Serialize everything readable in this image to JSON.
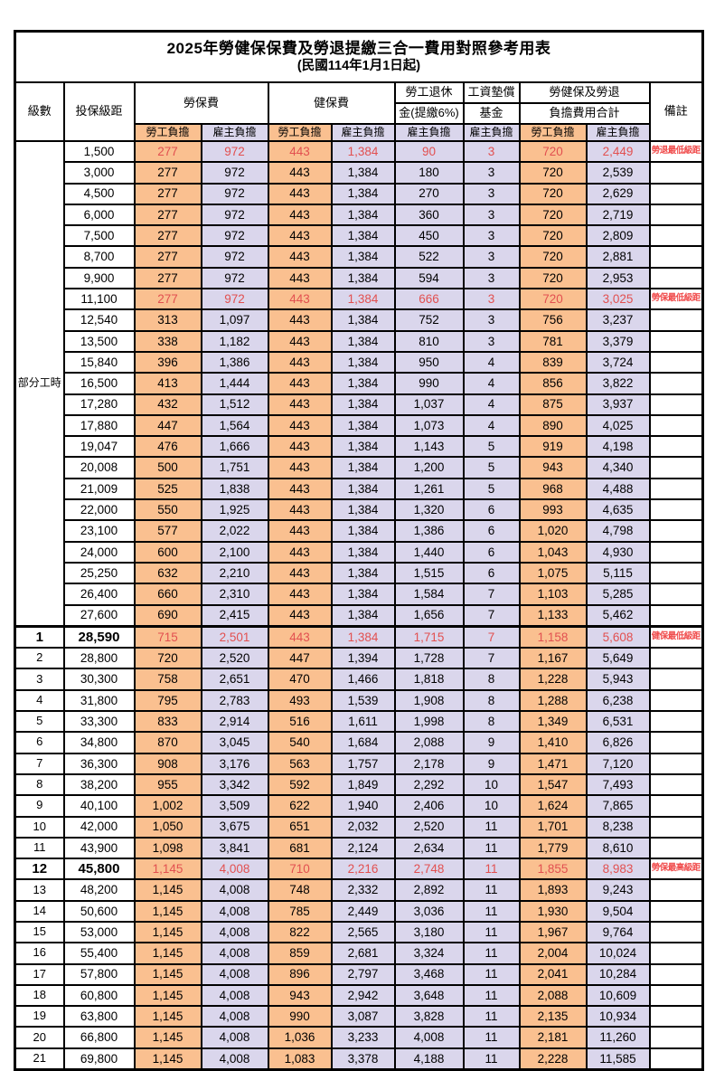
{
  "title": "2025年勞健保保費及勞退提繳三合一費用對照參考用表",
  "subtitle": "(民國114年1月1日起)",
  "colors": {
    "employee_bg": "#FAC090",
    "employer_bg": "#DAD6EC",
    "value_red": "#E25050",
    "note_red": "#F04B4B",
    "border": "#000000"
  },
  "header": {
    "level": "級數",
    "bracket": "投保級距",
    "labor_fee": "勞保費",
    "health_fee": "健保費",
    "pension_top": "勞工退休",
    "pension_bottom": "金(提繳6%)",
    "wage_fund_top": "工資墊償",
    "wage_fund_bottom": "基金",
    "total_top": "勞健保及勞退",
    "total_bottom": "負擔費用合計",
    "remark": "備註",
    "employee_share": "勞工負擔",
    "employer_share": "雇主負擔"
  },
  "part_time_label": "部分工時",
  "rows": [
    {
      "bracket": "1,500",
      "values": [
        "277",
        "972",
        "443",
        "1,384",
        "90",
        "3",
        "720",
        "2,449"
      ],
      "note": "勞退最低級距",
      "red": true
    },
    {
      "bracket": "3,000",
      "values": [
        "277",
        "972",
        "443",
        "1,384",
        "180",
        "3",
        "720",
        "2,539"
      ],
      "note": ""
    },
    {
      "bracket": "4,500",
      "values": [
        "277",
        "972",
        "443",
        "1,384",
        "270",
        "3",
        "720",
        "2,629"
      ],
      "note": ""
    },
    {
      "bracket": "6,000",
      "values": [
        "277",
        "972",
        "443",
        "1,384",
        "360",
        "3",
        "720",
        "2,719"
      ],
      "note": ""
    },
    {
      "bracket": "7,500",
      "values": [
        "277",
        "972",
        "443",
        "1,384",
        "450",
        "3",
        "720",
        "2,809"
      ],
      "note": ""
    },
    {
      "bracket": "8,700",
      "values": [
        "277",
        "972",
        "443",
        "1,384",
        "522",
        "3",
        "720",
        "2,881"
      ],
      "note": ""
    },
    {
      "bracket": "9,900",
      "values": [
        "277",
        "972",
        "443",
        "1,384",
        "594",
        "3",
        "720",
        "2,953"
      ],
      "note": ""
    },
    {
      "bracket": "11,100",
      "values": [
        "277",
        "972",
        "443",
        "1,384",
        "666",
        "3",
        "720",
        "3,025"
      ],
      "note": "勞保最低級距",
      "red": true
    },
    {
      "bracket": "12,540",
      "values": [
        "313",
        "1,097",
        "443",
        "1,384",
        "752",
        "3",
        "756",
        "3,237"
      ],
      "note": ""
    },
    {
      "bracket": "13,500",
      "values": [
        "338",
        "1,182",
        "443",
        "1,384",
        "810",
        "3",
        "781",
        "3,379"
      ],
      "note": ""
    },
    {
      "bracket": "15,840",
      "values": [
        "396",
        "1,386",
        "443",
        "1,384",
        "950",
        "4",
        "839",
        "3,724"
      ],
      "note": ""
    },
    {
      "bracket": "16,500",
      "values": [
        "413",
        "1,444",
        "443",
        "1,384",
        "990",
        "4",
        "856",
        "3,822"
      ],
      "note": ""
    },
    {
      "bracket": "17,280",
      "values": [
        "432",
        "1,512",
        "443",
        "1,384",
        "1,037",
        "4",
        "875",
        "3,937"
      ],
      "note": ""
    },
    {
      "bracket": "17,880",
      "values": [
        "447",
        "1,564",
        "443",
        "1,384",
        "1,073",
        "4",
        "890",
        "4,025"
      ],
      "note": ""
    },
    {
      "bracket": "19,047",
      "values": [
        "476",
        "1,666",
        "443",
        "1,384",
        "1,143",
        "5",
        "919",
        "4,198"
      ],
      "note": ""
    },
    {
      "bracket": "20,008",
      "values": [
        "500",
        "1,751",
        "443",
        "1,384",
        "1,200",
        "5",
        "943",
        "4,340"
      ],
      "note": ""
    },
    {
      "bracket": "21,009",
      "values": [
        "525",
        "1,838",
        "443",
        "1,384",
        "1,261",
        "5",
        "968",
        "4,488"
      ],
      "note": ""
    },
    {
      "bracket": "22,000",
      "values": [
        "550",
        "1,925",
        "443",
        "1,384",
        "1,320",
        "6",
        "993",
        "4,635"
      ],
      "note": ""
    },
    {
      "bracket": "23,100",
      "values": [
        "577",
        "2,022",
        "443",
        "1,384",
        "1,386",
        "6",
        "1,020",
        "4,798"
      ],
      "note": ""
    },
    {
      "bracket": "24,000",
      "values": [
        "600",
        "2,100",
        "443",
        "1,384",
        "1,440",
        "6",
        "1,043",
        "4,930"
      ],
      "note": ""
    },
    {
      "bracket": "25,250",
      "values": [
        "632",
        "2,210",
        "443",
        "1,384",
        "1,515",
        "6",
        "1,075",
        "5,115"
      ],
      "note": ""
    },
    {
      "bracket": "26,400",
      "values": [
        "660",
        "2,310",
        "443",
        "1,384",
        "1,584",
        "7",
        "1,103",
        "5,285"
      ],
      "note": ""
    },
    {
      "bracket": "27,600",
      "values": [
        "690",
        "2,415",
        "443",
        "1,384",
        "1,656",
        "7",
        "1,133",
        "5,462"
      ],
      "note": ""
    },
    {
      "level": "1",
      "bracket": "28,590",
      "values": [
        "715",
        "2,501",
        "443",
        "1,384",
        "1,715",
        "7",
        "1,158",
        "5,608"
      ],
      "note": "健保最低級距",
      "red": true,
      "bold": true,
      "grp": true
    },
    {
      "level": "2",
      "bracket": "28,800",
      "values": [
        "720",
        "2,520",
        "447",
        "1,394",
        "1,728",
        "7",
        "1,167",
        "5,649"
      ],
      "note": ""
    },
    {
      "level": "3",
      "bracket": "30,300",
      "values": [
        "758",
        "2,651",
        "470",
        "1,466",
        "1,818",
        "8",
        "1,228",
        "5,943"
      ],
      "note": ""
    },
    {
      "level": "4",
      "bracket": "31,800",
      "values": [
        "795",
        "2,783",
        "493",
        "1,539",
        "1,908",
        "8",
        "1,288",
        "6,238"
      ],
      "note": ""
    },
    {
      "level": "5",
      "bracket": "33,300",
      "values": [
        "833",
        "2,914",
        "516",
        "1,611",
        "1,998",
        "8",
        "1,349",
        "6,531"
      ],
      "note": ""
    },
    {
      "level": "6",
      "bracket": "34,800",
      "values": [
        "870",
        "3,045",
        "540",
        "1,684",
        "2,088",
        "9",
        "1,410",
        "6,826"
      ],
      "note": ""
    },
    {
      "level": "7",
      "bracket": "36,300",
      "values": [
        "908",
        "3,176",
        "563",
        "1,757",
        "2,178",
        "9",
        "1,471",
        "7,120"
      ],
      "note": ""
    },
    {
      "level": "8",
      "bracket": "38,200",
      "values": [
        "955",
        "3,342",
        "592",
        "1,849",
        "2,292",
        "10",
        "1,547",
        "7,493"
      ],
      "note": ""
    },
    {
      "level": "9",
      "bracket": "40,100",
      "values": [
        "1,002",
        "3,509",
        "622",
        "1,940",
        "2,406",
        "10",
        "1,624",
        "7,865"
      ],
      "note": ""
    },
    {
      "level": "10",
      "bracket": "42,000",
      "values": [
        "1,050",
        "3,675",
        "651",
        "2,032",
        "2,520",
        "11",
        "1,701",
        "8,238"
      ],
      "note": ""
    },
    {
      "level": "11",
      "bracket": "43,900",
      "values": [
        "1,098",
        "3,841",
        "681",
        "2,124",
        "2,634",
        "11",
        "1,779",
        "8,610"
      ],
      "note": ""
    },
    {
      "level": "12",
      "bracket": "45,800",
      "values": [
        "1,145",
        "4,008",
        "710",
        "2,216",
        "2,748",
        "11",
        "1,855",
        "8,983"
      ],
      "note": "勞保最高級距",
      "red": true,
      "bold": true
    },
    {
      "level": "13",
      "bracket": "48,200",
      "values": [
        "1,145",
        "4,008",
        "748",
        "2,332",
        "2,892",
        "11",
        "1,893",
        "9,243"
      ],
      "note": ""
    },
    {
      "level": "14",
      "bracket": "50,600",
      "values": [
        "1,145",
        "4,008",
        "785",
        "2,449",
        "3,036",
        "11",
        "1,930",
        "9,504"
      ],
      "note": ""
    },
    {
      "level": "15",
      "bracket": "53,000",
      "values": [
        "1,145",
        "4,008",
        "822",
        "2,565",
        "3,180",
        "11",
        "1,967",
        "9,764"
      ],
      "note": ""
    },
    {
      "level": "16",
      "bracket": "55,400",
      "values": [
        "1,145",
        "4,008",
        "859",
        "2,681",
        "3,324",
        "11",
        "2,004",
        "10,024"
      ],
      "note": ""
    },
    {
      "level": "17",
      "bracket": "57,800",
      "values": [
        "1,145",
        "4,008",
        "896",
        "2,797",
        "3,468",
        "11",
        "2,041",
        "10,284"
      ],
      "note": ""
    },
    {
      "level": "18",
      "bracket": "60,800",
      "values": [
        "1,145",
        "4,008",
        "943",
        "2,942",
        "3,648",
        "11",
        "2,088",
        "10,609"
      ],
      "note": ""
    },
    {
      "level": "19",
      "bracket": "63,800",
      "values": [
        "1,145",
        "4,008",
        "990",
        "3,087",
        "3,828",
        "11",
        "2,135",
        "10,934"
      ],
      "note": ""
    },
    {
      "level": "20",
      "bracket": "66,800",
      "values": [
        "1,145",
        "4,008",
        "1,036",
        "3,233",
        "4,008",
        "11",
        "2,181",
        "11,260"
      ],
      "note": ""
    },
    {
      "level": "21",
      "bracket": "69,800",
      "values": [
        "1,145",
        "4,008",
        "1,083",
        "3,378",
        "4,188",
        "11",
        "2,228",
        "11,585"
      ],
      "note": ""
    }
  ]
}
